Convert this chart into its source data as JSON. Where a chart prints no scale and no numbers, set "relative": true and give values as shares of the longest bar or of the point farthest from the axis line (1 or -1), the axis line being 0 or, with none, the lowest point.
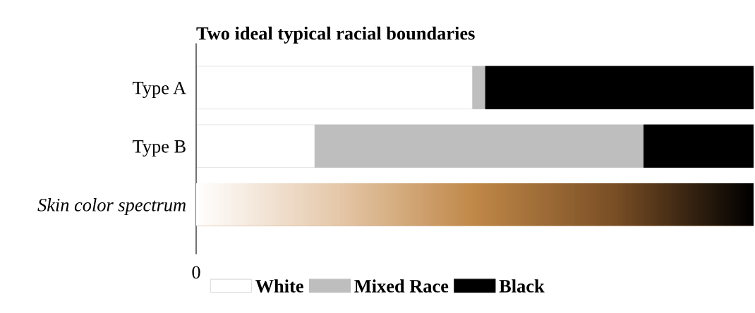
{
  "chart_data": {
    "type": "bar",
    "orientation": "horizontal",
    "stacked": true,
    "relative": true,
    "title": "Two ideal typical racial boundaries",
    "categories": [
      "Type A",
      "Type B",
      "Skin color spectrum"
    ],
    "series": [
      {
        "name": "White",
        "color": "#ffffff",
        "values": [
          0.496,
          0.213,
          null
        ]
      },
      {
        "name": "Mixed Race",
        "color": "#bebebe",
        "values": [
          0.023,
          0.59,
          null
        ]
      },
      {
        "name": "Black",
        "color": "#000000",
        "values": [
          0.481,
          0.197,
          null
        ]
      },
      {
        "color": "#b97f45",
        "values": [
          null,
          null,
          1
        ]
      }
    ],
    "annotations": [
      "0"
    ],
    "legend": "bottom",
    "grid": false
  }
}
